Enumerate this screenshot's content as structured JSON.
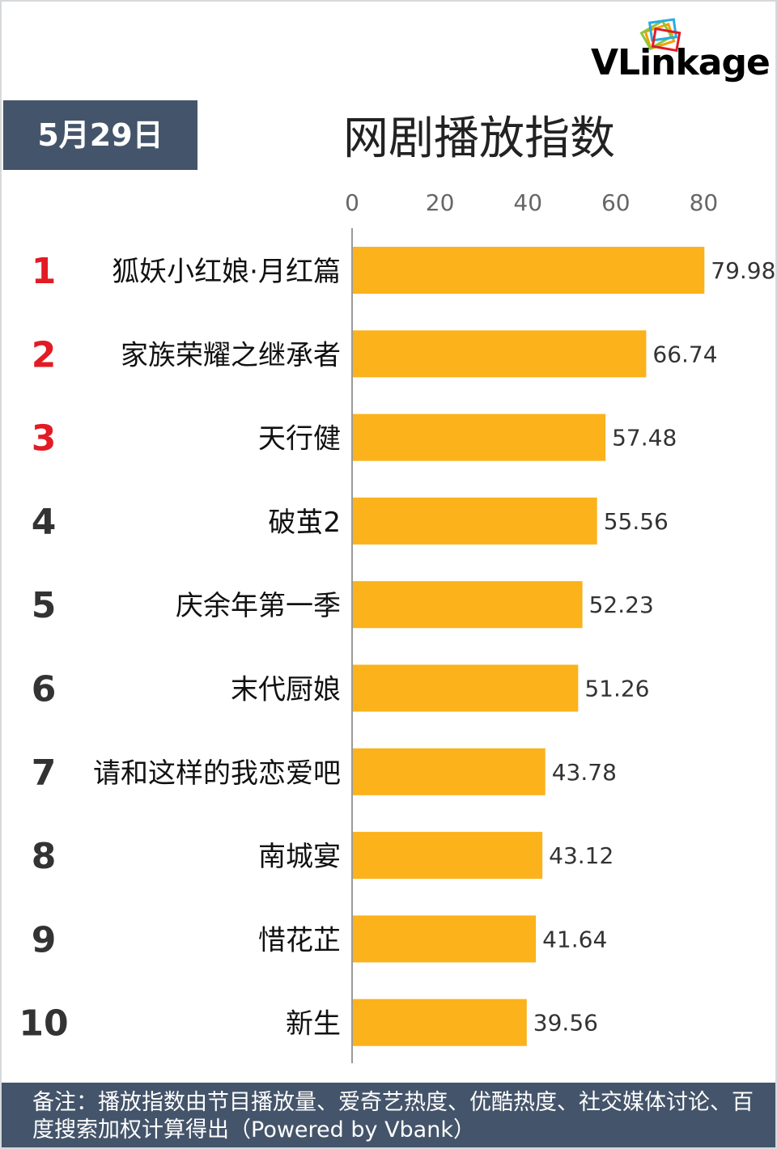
{
  "logo": {
    "brand": "VLinkage"
  },
  "header": {
    "date": "5月29日",
    "title": "网剧播放指数"
  },
  "chart_data": {
    "type": "bar",
    "orientation": "horizontal",
    "title": "网剧播放指数",
    "xlim": [
      0,
      80
    ],
    "xticks": [
      0,
      20,
      40,
      60,
      80
    ],
    "ranks": [
      "1",
      "2",
      "3",
      "4",
      "5",
      "6",
      "7",
      "8",
      "9",
      "10"
    ],
    "categories": [
      "狐妖小红娘·月红篇",
      "家族荣耀之继承者",
      "天行健",
      "破茧2",
      "庆余年第一季",
      "末代厨娘",
      "请和这样的我恋爱吧",
      "南城宴",
      "惜花芷",
      "新生"
    ],
    "values": [
      79.98,
      66.74,
      57.48,
      55.56,
      52.23,
      51.26,
      43.78,
      43.12,
      41.64,
      39.56
    ],
    "value_labels": [
      "79.98",
      "66.74",
      "57.48",
      "55.56",
      "52.23",
      "51.26",
      "43.78",
      "43.12",
      "41.64",
      "39.56"
    ],
    "bar_color": "#fbb21b",
    "top_rank_color": "#e21b24",
    "rank_color": "#333333",
    "grid": false,
    "legend": "none"
  },
  "footer": {
    "note": "备注：播放指数由节目播放量、爱奇艺热度、优酷热度、社交媒体讨论、百度搜索加权计算得出（Powered by Vbank）"
  }
}
